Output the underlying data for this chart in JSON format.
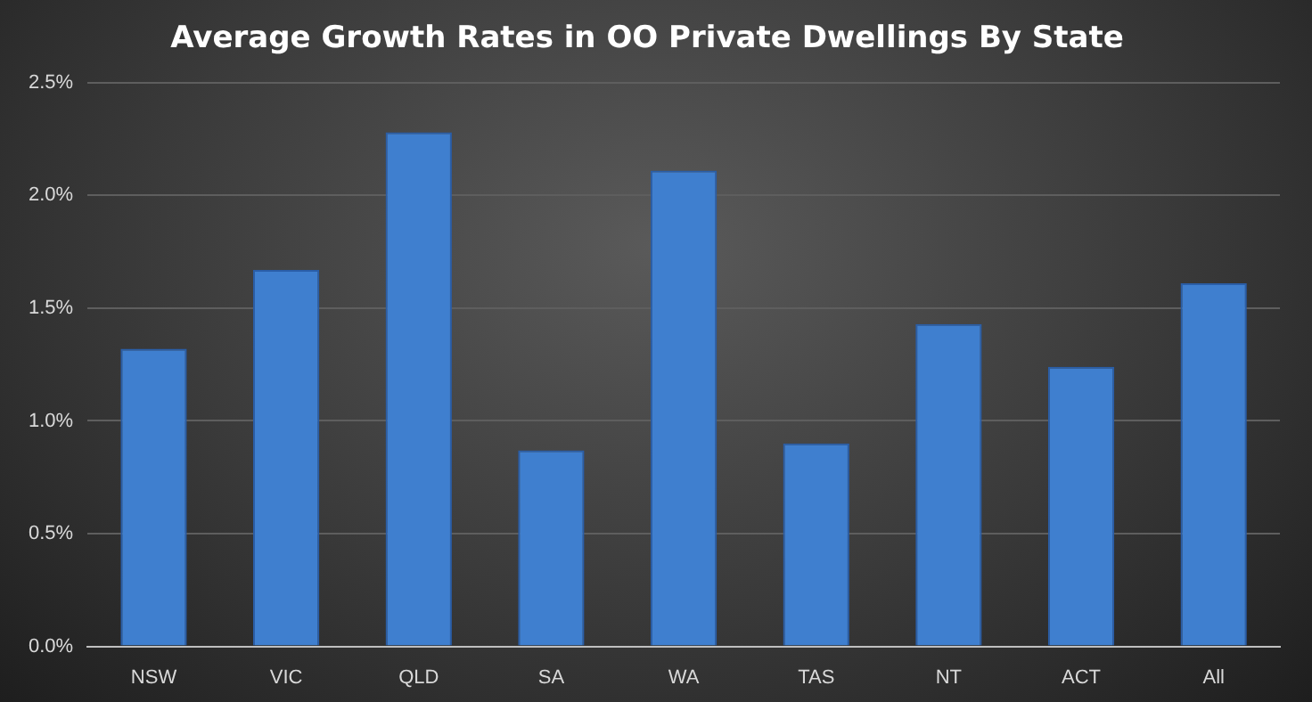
{
  "chart_data": {
    "type": "bar",
    "title": "Average Growth Rates in OO Private Dwellings By State",
    "categories": [
      "NSW",
      "VIC",
      "QLD",
      "SA",
      "WA",
      "TAS",
      "NT",
      "ACT",
      "All"
    ],
    "values": [
      1.32,
      1.67,
      2.28,
      0.87,
      2.11,
      0.9,
      1.43,
      1.24,
      1.61
    ],
    "color": "#3f7fcf",
    "ylim": [
      0,
      2.5
    ],
    "yticks": [
      {
        "value": 0,
        "label": "0.0%"
      },
      {
        "value": 0.5,
        "label": "0.5%"
      },
      {
        "value": 1,
        "label": "1.0%"
      },
      {
        "value": 1.5,
        "label": "1.5%"
      },
      {
        "value": 2,
        "label": "2.0%"
      },
      {
        "value": 2.5,
        "label": "2.5%"
      }
    ],
    "grid": "y",
    "legend": false
  }
}
